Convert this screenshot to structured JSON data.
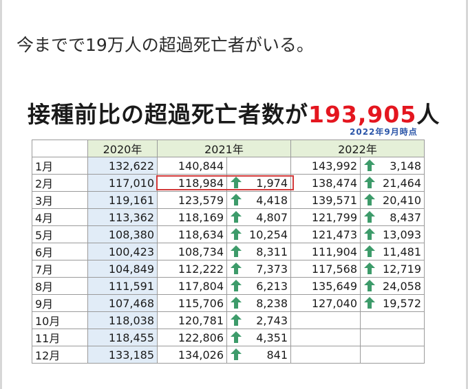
{
  "caption": "今までで19万人の超過死亡者がいる。",
  "headline": {
    "prefix": "接種前比の超過死亡者数が",
    "number": "193,905",
    "suffix": "人"
  },
  "stamp": "2022年9月時点",
  "table": {
    "headers": [
      "2020年",
      "2021年",
      "2022年"
    ],
    "rows": [
      {
        "month": "1月",
        "v2020": "132,622",
        "v2021": "140,844",
        "d2021": "",
        "v2022": "143,992",
        "d2022": "3,148"
      },
      {
        "month": "2月",
        "v2020": "117,010",
        "v2021": "118,984",
        "d2021": "1,974",
        "v2022": "138,474",
        "d2022": "21,464"
      },
      {
        "month": "3月",
        "v2020": "119,161",
        "v2021": "123,579",
        "d2021": "4,418",
        "v2022": "139,571",
        "d2022": "20,410"
      },
      {
        "month": "4月",
        "v2020": "113,362",
        "v2021": "118,169",
        "d2021": "4,807",
        "v2022": "121,799",
        "d2022": "8,437"
      },
      {
        "month": "5月",
        "v2020": "108,380",
        "v2021": "118,634",
        "d2021": "10,254",
        "v2022": "121,473",
        "d2022": "13,093"
      },
      {
        "month": "6月",
        "v2020": "100,423",
        "v2021": "108,734",
        "d2021": "8,311",
        "v2022": "111,904",
        "d2022": "11,481"
      },
      {
        "month": "7月",
        "v2020": "104,849",
        "v2021": "112,222",
        "d2021": "7,373",
        "v2022": "117,568",
        "d2022": "12,719"
      },
      {
        "month": "8月",
        "v2020": "111,591",
        "v2021": "117,804",
        "d2021": "6,213",
        "v2022": "135,649",
        "d2022": "24,058"
      },
      {
        "month": "9月",
        "v2020": "107,468",
        "v2021": "115,706",
        "d2021": "8,238",
        "v2022": "127,040",
        "d2022": "19,572"
      },
      {
        "month": "10月",
        "v2020": "118,038",
        "v2021": "120,781",
        "d2021": "2,743",
        "v2022": "",
        "d2022": ""
      },
      {
        "month": "11月",
        "v2020": "118,455",
        "v2021": "122,806",
        "d2021": "4,351",
        "v2022": "",
        "d2022": ""
      },
      {
        "month": "12月",
        "v2020": "133,185",
        "v2021": "134,026",
        "d2021": "841",
        "v2022": "",
        "d2022": ""
      }
    ]
  },
  "colors": {
    "arrow": "#3d9b6a",
    "highlight": "#d23a3a",
    "header_bg": "#e5f0d8",
    "col2020_bg": "#e1ecf7",
    "headline_number": "#e4161f"
  },
  "icons": {
    "up": "up-arrow-icon"
  }
}
